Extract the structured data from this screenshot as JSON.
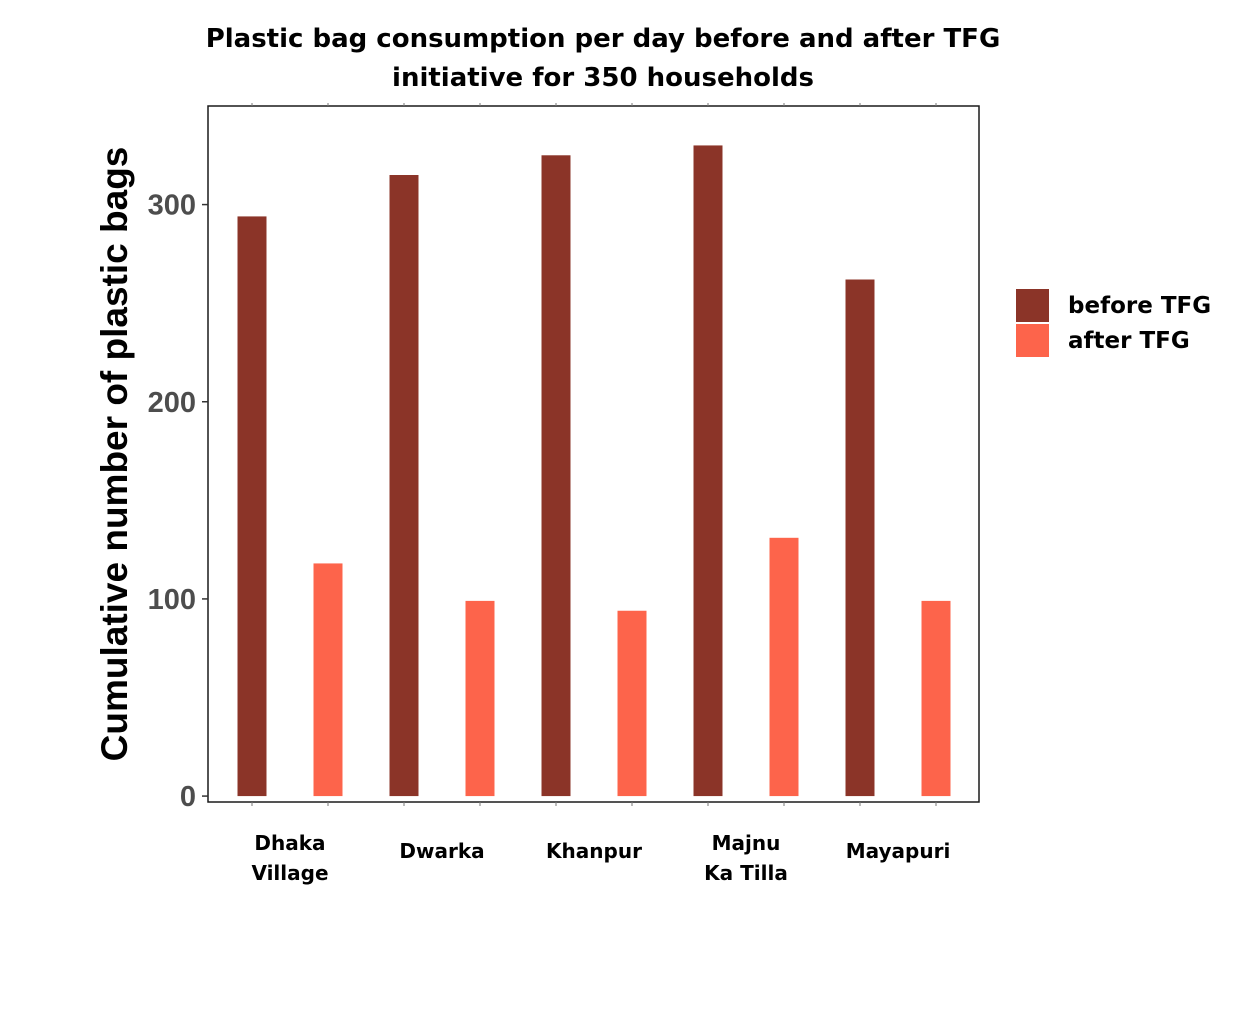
{
  "chart_data": {
    "type": "bar",
    "title": [
      "Plastic bag consumption per day before and after TFG",
      "initiative for 350 households"
    ],
    "ylabel": "Cumulative number of plastic bags",
    "xlabel": "",
    "ylim": [
      -3,
      350
    ],
    "yticks": [
      0,
      100,
      200,
      300
    ],
    "categories": [
      [
        "Dhaka",
        "Village"
      ],
      [
        "Dwarka"
      ],
      [
        "Khanpur"
      ],
      [
        "Majnu",
        "Ka Tilla"
      ],
      [
        "Mayapuri"
      ]
    ],
    "series": [
      {
        "name": "before TFG",
        "color": "#8b3428",
        "values": [
          294,
          315,
          325,
          330,
          262
        ]
      },
      {
        "name": "after TFG",
        "color": "#fd644b",
        "values": [
          118,
          99,
          94,
          131,
          99
        ]
      }
    ],
    "legend": "right",
    "grid": false
  }
}
